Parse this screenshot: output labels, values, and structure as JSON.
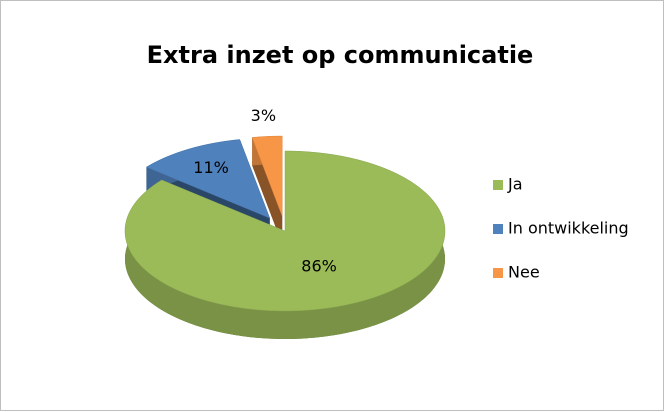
{
  "chart_data": {
    "type": "pie",
    "title": "Extra inzet op communicatie",
    "categories": [
      "Ja",
      "In ontwikkeling",
      "Nee"
    ],
    "values": [
      86,
      11,
      3
    ],
    "value_labels": [
      "86%",
      "11%",
      "3%"
    ],
    "colors": [
      "#9bbb59",
      "#4f81bd",
      "#f79646"
    ],
    "exploded": [
      false,
      true,
      true
    ],
    "legend": "right"
  }
}
